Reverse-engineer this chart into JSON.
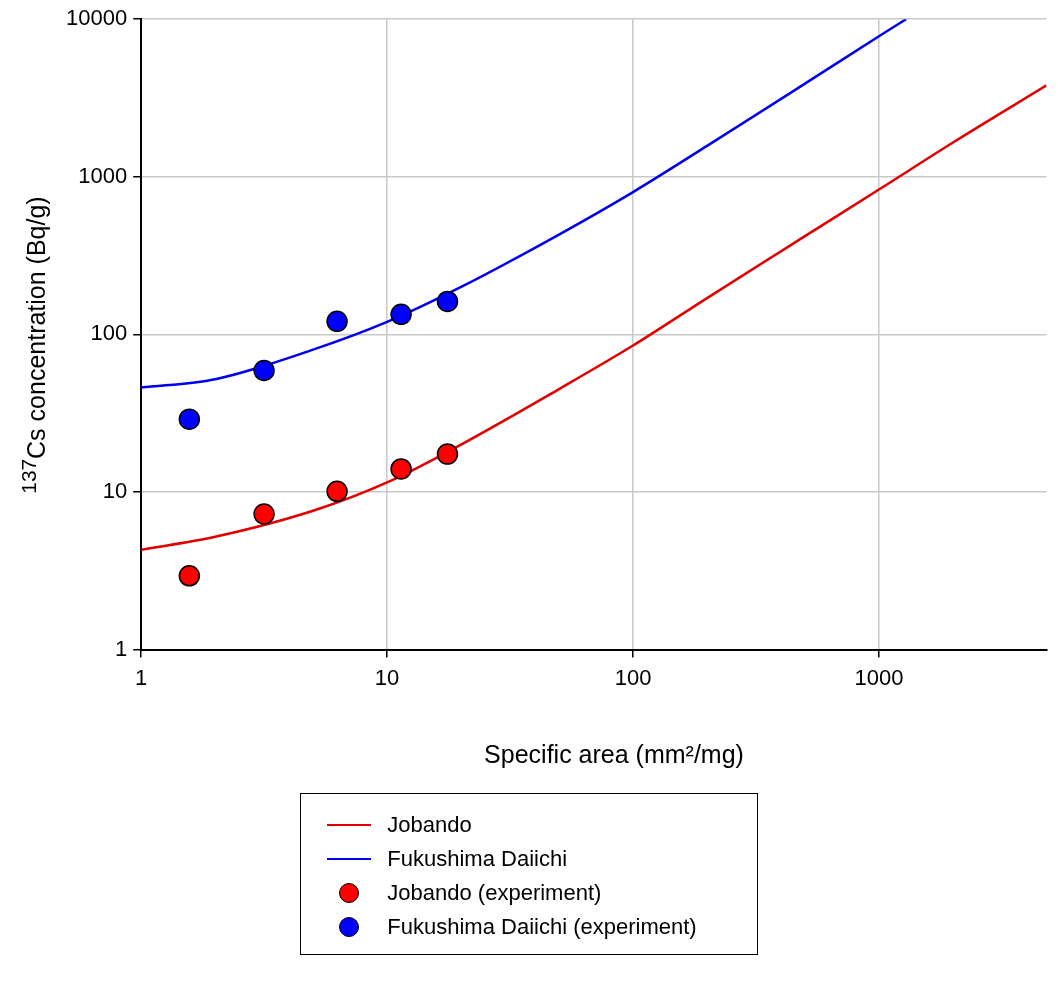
{
  "chart_data": {
    "type": "scatter",
    "xlabel": "Specific area (mm²/mg)",
    "ylabel": "$^{137}$Cs concentration (Bq/g)",
    "log": "xy",
    "grid": true,
    "legend": "bottom",
    "xlim": [
      1,
      4800
    ],
    "xticks": [
      1,
      10,
      100,
      1000
    ],
    "ylim": [
      1,
      10000
    ],
    "yticks": [
      1,
      10,
      100,
      1000,
      10000
    ],
    "series": [
      {
        "name": "Jobando",
        "type": "line",
        "marker": "none",
        "color": "#e00000",
        "x": [
          1,
          2,
          5,
          10,
          20,
          50,
          100,
          200,
          500,
          1000,
          2000,
          4800
        ],
        "values": [
          4.3,
          5.2,
          7.6,
          11.5,
          20,
          45,
          85,
          170,
          420,
          830,
          1650,
          3800
        ]
      },
      {
        "name": "Fukushima Daiichi",
        "type": "line",
        "marker": "none",
        "color": "#0000ee",
        "x": [
          1,
          2,
          5,
          10,
          20,
          50,
          100,
          200,
          500,
          1000,
          1290
        ],
        "values": [
          46,
          52,
          80,
          120,
          200,
          430,
          800,
          1570,
          3900,
          7800,
          10000
        ]
      },
      {
        "name": "Jobando (experiment)",
        "type": "scatter",
        "marker": "circle",
        "color": "#ff0000",
        "x": [
          1.57,
          3.16,
          6.26,
          11.4,
          17.6
        ],
        "values": [
          2.94,
          7.25,
          10.1,
          14.0,
          17.4
        ]
      },
      {
        "name": "Fukushima Daiichi (experiment)",
        "type": "scatter",
        "marker": "circle",
        "color": "#0000ff",
        "x": [
          1.57,
          3.16,
          6.26,
          11.4,
          17.6
        ],
        "values": [
          29,
          59,
          121,
          134,
          162
        ]
      }
    ]
  }
}
